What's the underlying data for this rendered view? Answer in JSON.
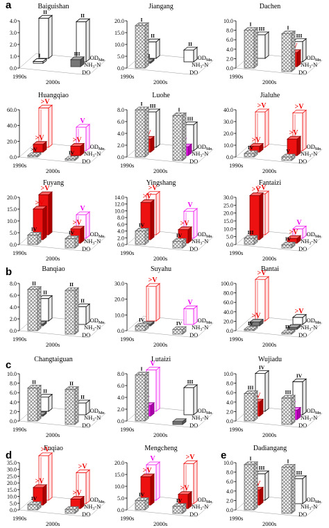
{
  "figure": {
    "panel_labels": [
      "a",
      "b",
      "c",
      "d",
      "e"
    ],
    "category_labels": [
      "1990s",
      "2000s"
    ],
    "indicator_labels": [
      "CODMn",
      "NH3-N",
      "DO"
    ],
    "colors": {
      "exceed": "#ee1111",
      "exceed_light": "#ff6666",
      "magenta": "#ee11ee",
      "grey": "#777777",
      "hatch": "#9a9a9a",
      "grade_text": "#ee0000",
      "magenta_text": "#ee00ee"
    }
  },
  "chart_data": [
    {
      "title": "Baiguishan",
      "type": "bar3d",
      "ylim": [
        0,
        4
      ],
      "ticks": [
        "0.0",
        "1.0",
        "2.0",
        "3.0",
        "4.0"
      ],
      "bars": [
        {
          "x": "1990s",
          "series": "CODMn",
          "value": 3.4,
          "style": "white",
          "label": "II"
        },
        {
          "x": "2000s",
          "series": "CODMn",
          "value": 3.4,
          "style": "white",
          "label": "II"
        },
        {
          "x": "1990s",
          "series": "NH3-N",
          "value": 0.15,
          "style": "white",
          "label": "I"
        },
        {
          "x": "2000s",
          "series": "NH3-N",
          "value": 0.6,
          "style": "grey",
          "label": "III"
        }
      ]
    },
    {
      "title": "Jiangang",
      "type": "bar3d",
      "ylim": [
        0,
        20
      ],
      "ticks": [
        "0.0",
        "5.0",
        "10.0",
        "15.0",
        "20.0"
      ],
      "bars": [
        {
          "x": "1990s",
          "series": "DO",
          "value": 18,
          "style": "hatch",
          "label": "I"
        },
        {
          "x": "1990s",
          "series": "CODMn",
          "value": 7,
          "style": "white",
          "label": "II"
        },
        {
          "x": "2000s",
          "series": "CODMn",
          "value": 5,
          "style": "white",
          "label": "II"
        },
        {
          "x": "1990s",
          "series": "NH3-N",
          "value": 0.6,
          "style": "grey",
          "label": "III"
        }
      ]
    },
    {
      "title": "Dachen",
      "type": "bar3d",
      "ylim": [
        0,
        10
      ],
      "ticks": [
        "0.0",
        "2.0",
        "4.0",
        "6.0",
        "8.0",
        "10.0"
      ],
      "bars": [
        {
          "x": "1990s",
          "series": "DO",
          "value": 8,
          "style": "hatch",
          "label": "I"
        },
        {
          "x": "2000s",
          "series": "DO",
          "value": 8,
          "style": "hatch",
          "label": "I"
        },
        {
          "x": "1990s",
          "series": "CODMn",
          "value": 5,
          "style": "white",
          "label": "III"
        },
        {
          "x": "2000s",
          "series": "CODMn",
          "value": 4.3,
          "style": "white",
          "label": "III"
        },
        {
          "x": "2000s",
          "series": "NH3-N",
          "value": 3.0,
          "style": "red",
          "label": "IV"
        }
      ]
    },
    {
      "title": "Huangqiao",
      "type": "bar3d",
      "ylim": [
        0,
        60
      ],
      "ticks": [
        "0.0",
        "20.0",
        "40.0",
        "60.0"
      ],
      "bars": [
        {
          "x": "1990s",
          "series": "CODMn",
          "value": 50,
          "style": "redout",
          "label": ">V"
        },
        {
          "x": "2000s",
          "series": "CODMn",
          "value": 30,
          "style": "magout",
          "label": "V"
        },
        {
          "x": "1990s",
          "series": "NH3-N",
          "value": 10,
          "style": "red",
          "label": ">V"
        },
        {
          "x": "2000s",
          "series": "NH3-N",
          "value": 12,
          "style": "red",
          "label": ">V"
        },
        {
          "x": "1990s",
          "series": "DO",
          "value": 2,
          "style": "hatch",
          "label": ">V"
        },
        {
          "x": "2000s",
          "series": "DO",
          "value": 2,
          "style": "hatch",
          "label": "IV"
        }
      ]
    },
    {
      "title": "Luohe",
      "type": "bar3d",
      "ylim": [
        0,
        8
      ],
      "ticks": [
        "0.0",
        "2.0",
        "4.0",
        "6.0",
        "8.0"
      ],
      "bars": [
        {
          "x": "1990s",
          "series": "DO",
          "value": 8,
          "style": "hatch",
          "label": "I"
        },
        {
          "x": "2000s",
          "series": "DO",
          "value": 7.6,
          "style": "hatch",
          "label": "I"
        },
        {
          "x": "1990s",
          "series": "CODMn",
          "value": 6,
          "style": "white",
          "label": "III"
        },
        {
          "x": "2000s",
          "series": "CODMn",
          "value": 4.4,
          "style": "white",
          "label": "III"
        },
        {
          "x": "1990s",
          "series": "NH3-N",
          "value": 2.2,
          "style": "red",
          "label": "IV"
        },
        {
          "x": "2000s",
          "series": "NH3-N",
          "value": 1.5,
          "style": "magenta",
          "label": "V"
        }
      ]
    },
    {
      "title": "Jialuhe",
      "type": "bar3d",
      "ylim": [
        0,
        40
      ],
      "ticks": [
        "0.0",
        "10.0",
        "20.0",
        "30.0",
        "40.0"
      ],
      "bars": [
        {
          "x": "1990s",
          "series": "CODMn",
          "value": 30,
          "style": "redout",
          "label": ">V"
        },
        {
          "x": "2000s",
          "series": "CODMn",
          "value": 32,
          "style": "redout",
          "label": ">V"
        },
        {
          "x": "1990s",
          "series": "NH3-N",
          "value": 5,
          "style": "red",
          "label": ">V"
        },
        {
          "x": "2000s",
          "series": "NH3-N",
          "value": 14,
          "style": "red",
          "label": ">V"
        },
        {
          "x": "1990s",
          "series": "DO",
          "value": 3,
          "style": "hatch",
          "label": "IV"
        },
        {
          "x": "2000s",
          "series": "DO",
          "value": 3,
          "style": "hatch",
          "label": "V"
        }
      ]
    },
    {
      "title": "Fuyang",
      "type": "bar3d",
      "ylim": [
        0,
        20
      ],
      "ticks": [
        "0.0",
        "5.0",
        "10.0",
        "15.0",
        "20.0"
      ],
      "bars": [
        {
          "x": "1990s",
          "series": "CODMn",
          "value": 17,
          "style": "red",
          "label": ">V"
        },
        {
          "x": "2000s",
          "series": "CODMn",
          "value": 10,
          "style": "magout",
          "label": "V"
        },
        {
          "x": "1990s",
          "series": "NH3-N",
          "value": 13,
          "style": "red",
          "label": ">V"
        },
        {
          "x": "2000s",
          "series": "NH3-N",
          "value": 6,
          "style": "red",
          "label": ">V"
        },
        {
          "x": "1990s",
          "series": "DO",
          "value": 4,
          "style": "hatch",
          "label": "IV"
        },
        {
          "x": "2000s",
          "series": "DO",
          "value": 4,
          "style": "hatch",
          "label": "IV"
        }
      ]
    },
    {
      "title": "Yingshang",
      "type": "bar3d",
      "ylim": [
        0,
        14
      ],
      "ticks": [
        "0.0",
        "2.0",
        "4.0",
        "6.0",
        "8.0",
        "10.0",
        "12.0",
        "14.0"
      ],
      "bars": [
        {
          "x": "1990s",
          "series": "CODMn",
          "value": 12,
          "style": "redout",
          "label": ">V"
        },
        {
          "x": "2000s",
          "series": "CODMn",
          "value": 8,
          "style": "magout",
          "label": "V"
        },
        {
          "x": "1990s",
          "series": "NH3-N",
          "value": 11,
          "style": "red",
          "label": ">V"
        },
        {
          "x": "2000s",
          "series": "NH3-N",
          "value": 4,
          "style": "red",
          "label": ">V"
        },
        {
          "x": "1990s",
          "series": "DO",
          "value": 4,
          "style": "hatch",
          "label": "IV"
        },
        {
          "x": "2000s",
          "series": "DO",
          "value": 2,
          "style": "hatch",
          "label": "IV"
        }
      ]
    },
    {
      "title": "Fantaizi",
      "type": "bar3d",
      "ylim": [
        0,
        30
      ],
      "ticks": [
        "0.0",
        "5.0",
        "10.0",
        "15.0",
        "20.0",
        "25.0",
        "30.0"
      ],
      "bars": [
        {
          "x": "1990s",
          "series": "CODMn",
          "value": 26,
          "style": "redout",
          "label": ">V"
        },
        {
          "x": "2000s",
          "series": "CODMn",
          "value": 6,
          "style": "magout",
          "label": "V"
        },
        {
          "x": "1990s",
          "series": "NH3-N",
          "value": 28,
          "style": "red",
          "label": ">V"
        },
        {
          "x": "2000s",
          "series": "NH3-N",
          "value": 3,
          "style": "red",
          "label": ">V"
        },
        {
          "x": "1990s",
          "series": "DO",
          "value": 4,
          "style": "hatch",
          "label": "III"
        },
        {
          "x": "2000s",
          "series": "DO",
          "value": 2,
          "style": "hatch",
          "label": "IV"
        }
      ]
    },
    {
      "title": "Banqiao",
      "type": "bar3d",
      "ylim": [
        0,
        8
      ],
      "ticks": [
        "0.0",
        "2.0",
        "4.0",
        "6.0",
        "8.0"
      ],
      "bars": [
        {
          "x": "1990s",
          "series": "DO",
          "value": 7,
          "style": "hatch",
          "label": "II"
        },
        {
          "x": "2000s",
          "series": "DO",
          "value": 7.4,
          "style": "hatch",
          "label": "II"
        },
        {
          "x": "1990s",
          "series": "CODMn",
          "value": 3.8,
          "style": "white",
          "label": "II"
        },
        {
          "x": "2000s",
          "series": "CODMn",
          "value": 3.0,
          "style": "white",
          "label": "II"
        },
        {
          "x": "1990s",
          "series": "NH3-N",
          "value": 0.3,
          "style": "grey",
          "label": ""
        }
      ]
    },
    {
      "title": "Suyahu",
      "type": "bar3d",
      "ylim": [
        0,
        30
      ],
      "ticks": [
        "0.0",
        "10.0",
        "20.0",
        "30.0"
      ],
      "bars": [
        {
          "x": "1990s",
          "series": "CODMn",
          "value": 22,
          "style": "redout",
          "label": ">V"
        },
        {
          "x": "2000s",
          "series": "CODMn",
          "value": 10,
          "style": "magout",
          "label": "V"
        },
        {
          "x": "1990s",
          "series": "NH3-N",
          "value": 1,
          "style": "grey",
          "label": ""
        },
        {
          "x": "1990s",
          "series": "DO",
          "value": 3,
          "style": "hatch",
          "label": "IV"
        },
        {
          "x": "2000s",
          "series": "DO",
          "value": 3,
          "style": "hatch",
          "label": "IV"
        }
      ]
    },
    {
      "title": "Bantai",
      "type": "bar3d",
      "ylim": [
        0,
        100
      ],
      "ticks": [
        "0.0",
        "20.0",
        "40.0",
        "60.0",
        "80.0",
        "100.0"
      ],
      "bars": [
        {
          "x": "1990s",
          "series": "CODMn",
          "value": 88,
          "style": "redout",
          "label": ">V"
        },
        {
          "x": "2000s",
          "series": "CODMn",
          "value": 15,
          "style": "blackout",
          "label": ">V"
        },
        {
          "x": "1990s",
          "series": "NH3-N",
          "value": 8,
          "style": "grey",
          "label": ">V"
        },
        {
          "x": "2000s",
          "series": "NH3-N",
          "value": 4,
          "style": "grey",
          "label": ""
        },
        {
          "x": "1990s",
          "series": "DO",
          "value": 3,
          "style": "hatch",
          "label": "IV"
        },
        {
          "x": "2000s",
          "series": "DO",
          "value": 3,
          "style": "hatch",
          "label": "IV"
        }
      ]
    },
    {
      "title": "Changtaiguan",
      "type": "bar3d",
      "ylim": [
        0,
        10
      ],
      "ticks": [
        "0.0",
        "2.0",
        "4.0",
        "6.0",
        "8.0",
        "10.0"
      ],
      "bars": [
        {
          "x": "1990s",
          "series": "DO",
          "value": 7,
          "style": "hatch",
          "label": "II"
        },
        {
          "x": "2000s",
          "series": "DO",
          "value": 7.4,
          "style": "hatch",
          "label": "II"
        },
        {
          "x": "1990s",
          "series": "CODMn",
          "value": 3.0,
          "style": "white",
          "label": "II"
        },
        {
          "x": "2000s",
          "series": "CODMn",
          "value": 2.5,
          "style": "white",
          "label": "II"
        },
        {
          "x": "1990s",
          "series": "NH3-N",
          "value": 0.3,
          "style": "grey",
          "label": ""
        }
      ]
    },
    {
      "title": "Lutaizi",
      "type": "bar3d",
      "ylim": [
        0,
        8
      ],
      "ticks": [
        "0.0",
        "2.0",
        "4.0",
        "6.0",
        "8.0"
      ],
      "bars": [
        {
          "x": "1990s",
          "series": "DO",
          "value": 7.8,
          "style": "hatch",
          "label": "I"
        },
        {
          "x": "1990s",
          "series": "CODMn",
          "value": 7,
          "style": "magout",
          "label": "V"
        },
        {
          "x": "2000s",
          "series": "CODMn",
          "value": 4.6,
          "style": "white",
          "label": "III"
        },
        {
          "x": "1990s",
          "series": "NH3-N",
          "value": 1.8,
          "style": "magenta",
          "label": "V"
        },
        {
          "x": "2000s",
          "series": "DO",
          "value": 0.5,
          "style": "grey",
          "label": ""
        }
      ]
    },
    {
      "title": "Wujiadu",
      "type": "bar3d",
      "ylim": [
        0,
        10
      ],
      "ticks": [
        "0.0",
        "2.0",
        "4.0",
        "6.0",
        "8.0",
        "10.0"
      ],
      "bars": [
        {
          "x": "1990s",
          "series": "CODMn",
          "value": 8,
          "style": "white",
          "label": "IV"
        },
        {
          "x": "2000s",
          "series": "CODMn",
          "value": 7,
          "style": "white",
          "label": "IV"
        },
        {
          "x": "1990s",
          "series": "DO",
          "value": 5.8,
          "style": "hatch",
          "label": "III"
        },
        {
          "x": "2000s",
          "series": "DO",
          "value": 5.6,
          "style": "hatch",
          "label": "III"
        },
        {
          "x": "1990s",
          "series": "NH3-N",
          "value": 3,
          "style": "red",
          "label": ">V"
        },
        {
          "x": "2000s",
          "series": "NH3-N",
          "value": 2,
          "style": "magenta",
          "label": "V"
        }
      ]
    },
    {
      "title": "Fuqiao",
      "type": "bar3d",
      "ylim": [
        0,
        35
      ],
      "ticks": [
        "0.0",
        "5.0",
        "10.0",
        "15.0",
        "20.0",
        "25.0",
        "30.0",
        "35.0"
      ],
      "bars": [
        {
          "x": "1990s",
          "series": "CODMn",
          "value": 33,
          "style": "redout",
          "label": ">V"
        },
        {
          "x": "2000s",
          "series": "CODMn",
          "value": 23,
          "style": "redout",
          "label": ">V"
        },
        {
          "x": "1990s",
          "series": "NH3-N",
          "value": 13,
          "style": "red",
          "label": ">V"
        },
        {
          "x": "2000s",
          "series": "NH3-N",
          "value": 7,
          "style": "red",
          "label": ">V"
        },
        {
          "x": "1990s",
          "series": "DO",
          "value": 4,
          "style": "hatch",
          "label": "IV"
        },
        {
          "x": "2000s",
          "series": "DO",
          "value": 3,
          "style": "hatch",
          "label": ""
        }
      ]
    },
    {
      "title": "Mengcheng",
      "type": "bar3d",
      "ylim": [
        0,
        20
      ],
      "ticks": [
        "0.0",
        "5.0",
        "10.0",
        "15.0",
        "20.0"
      ],
      "bars": [
        {
          "x": "1990s",
          "series": "CODMn",
          "value": 15,
          "style": "magout",
          "label": "V"
        },
        {
          "x": "2000s",
          "series": "CODMn",
          "value": 17,
          "style": "redout",
          "label": ">V"
        },
        {
          "x": "1990s",
          "series": "NH3-N",
          "value": 12,
          "style": "red",
          "label": ">V"
        },
        {
          "x": "2000s",
          "series": "NH3-N",
          "value": 6,
          "style": "red",
          "label": ">V"
        },
        {
          "x": "1990s",
          "series": "DO",
          "value": 4,
          "style": "hatch",
          "label": "IV"
        },
        {
          "x": "2000s",
          "series": "DO",
          "value": 3,
          "style": "hatch",
          "label": "IV"
        }
      ]
    },
    {
      "title": "Dadiangang",
      "type": "bar3d",
      "ylim": [
        0,
        10
      ],
      "ticks": [
        "0.0",
        "2.0",
        "4.0",
        "6.0",
        "8.0",
        "10.0"
      ],
      "bars": [
        {
          "x": "1990s",
          "series": "DO",
          "value": 9.6,
          "style": "hatch",
          "label": "I"
        },
        {
          "x": "2000s",
          "series": "DO",
          "value": 9.8,
          "style": "hatch",
          "label": "I"
        },
        {
          "x": "1990s",
          "series": "CODMn",
          "value": 5.6,
          "style": "white",
          "label": "III"
        },
        {
          "x": "2000s",
          "series": "CODMn",
          "value": 5.3,
          "style": "white",
          "label": "III"
        },
        {
          "x": "1990s",
          "series": "NH3-N",
          "value": 3.2,
          "style": "red",
          "label": ">V"
        }
      ]
    }
  ]
}
